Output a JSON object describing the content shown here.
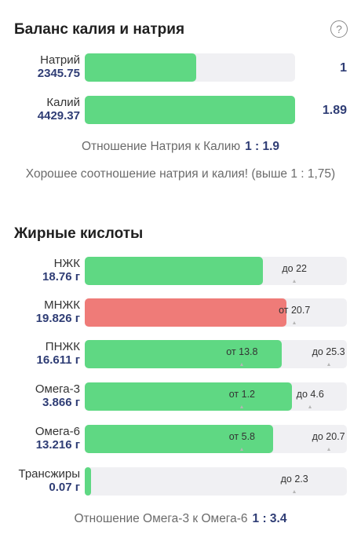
{
  "balance": {
    "title": "Баланс калия и натрия",
    "help_icon": "?",
    "sodium": {
      "name": "Натрий",
      "value": "2345.75",
      "ratio": "1",
      "fill_fraction": 0.53
    },
    "potassium": {
      "name": "Калий",
      "value": "4429.37",
      "ratio": "1.89",
      "fill_fraction": 1.0
    },
    "ratio_label": "Отношение Натрия к Калию",
    "ratio_value": "1 : 1.9",
    "note": "Хорошее соотношение натрия и калия! (выше 1 : 1,75)"
  },
  "fats": {
    "title": "Жирные кислоты",
    "items": [
      {
        "name": "НЖК",
        "value": "18.76 г",
        "color": "#5fd883",
        "fill_fraction": 0.68,
        "markers": [
          {
            "text": "до 22",
            "pos": 0.8
          }
        ]
      },
      {
        "name": "МНЖК",
        "value": "19.826 г",
        "color": "#ef7b78",
        "fill_fraction": 0.77,
        "markers": [
          {
            "text": "от 20.7",
            "pos": 0.8
          }
        ]
      },
      {
        "name": "ПНЖК",
        "value": "16.611 г",
        "color": "#5fd883",
        "fill_fraction": 0.75,
        "markers": [
          {
            "text": "от 13.8",
            "pos": 0.6
          },
          {
            "text": "до 25.3",
            "pos": 0.93
          }
        ]
      },
      {
        "name": "Омега-3",
        "value": "3.866 г",
        "color": "#5fd883",
        "fill_fraction": 0.79,
        "markers": [
          {
            "text": "от 1.2",
            "pos": 0.6
          },
          {
            "text": "до 4.6",
            "pos": 0.86
          }
        ]
      },
      {
        "name": "Омега-6",
        "value": "13.216 г",
        "color": "#5fd883",
        "fill_fraction": 0.72,
        "markers": [
          {
            "text": "от 5.8",
            "pos": 0.6
          },
          {
            "text": "до 20.7",
            "pos": 0.93
          }
        ]
      },
      {
        "name": "Трансжиры",
        "value": "0.07 г",
        "color": "#5fd883",
        "fill_fraction": 0.025,
        "markers": [
          {
            "text": "до 2.3",
            "pos": 0.8
          }
        ]
      }
    ],
    "ratio_label": "Отношение Омега-3 к Омега-6",
    "ratio_value": "1 : 3.4"
  }
}
